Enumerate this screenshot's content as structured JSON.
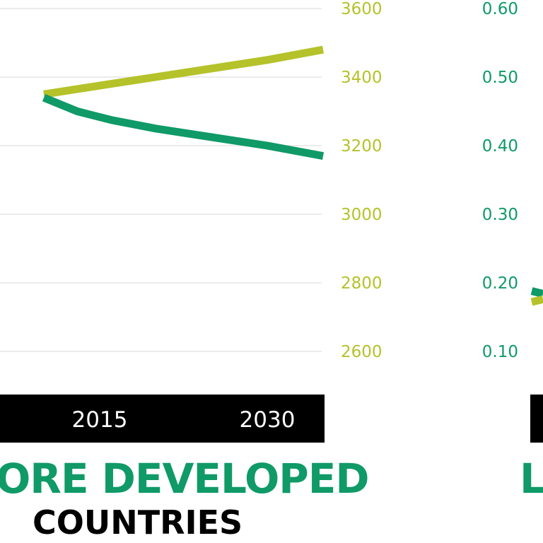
{
  "colors": {
    "dark_green": "#0f9a68",
    "lime": "#b5c22a",
    "grid": "#e6e6e6",
    "axis_bar": "#000000"
  },
  "left_panel": {
    "title_line1": "ORE DEVELOPED",
    "title_line2": "COUNTRIES"
  },
  "right_panel": {
    "title_line1": "L"
  },
  "chart_data": [
    {
      "type": "line",
      "title": "ORE DEVELOPED COUNTRIES",
      "x_tick_labels": [
        "2015",
        "2030"
      ],
      "y_right_ticks": [
        "3600",
        "3400",
        "3200",
        "3000",
        "2800",
        "2600"
      ],
      "ylim": [
        2600,
        3600
      ],
      "grid": true,
      "series": [
        {
          "color": "#b5c22a",
          "points": [
            [
              2010,
              3350
            ],
            [
              2015,
              3375
            ],
            [
              2020,
              3400
            ],
            [
              2025,
              3425
            ],
            [
              2030,
              3450
            ],
            [
              2035,
              3480
            ]
          ]
        },
        {
          "color": "#0f9a68",
          "points": [
            [
              2010,
              3340
            ],
            [
              2013,
              3300
            ],
            [
              2016,
              3275
            ],
            [
              2020,
              3250
            ],
            [
              2025,
              3225
            ],
            [
              2030,
              3200
            ],
            [
              2035,
              3170
            ]
          ]
        }
      ]
    },
    {
      "type": "line",
      "title": "L",
      "y_left_ticks": [
        "0.60",
        "0.50",
        "0.40",
        "0.30",
        "0.20",
        "0.10"
      ],
      "ylim": [
        0.1,
        0.6
      ],
      "grid": false,
      "series": [
        {
          "color": "#0f9a68",
          "points": [
            [
              0,
              0.188
            ],
            [
              1,
              0.184
            ]
          ]
        },
        {
          "color": "#b5c22a",
          "points": [
            [
              0,
              0.172
            ],
            [
              1,
              0.176
            ]
          ]
        }
      ]
    }
  ]
}
